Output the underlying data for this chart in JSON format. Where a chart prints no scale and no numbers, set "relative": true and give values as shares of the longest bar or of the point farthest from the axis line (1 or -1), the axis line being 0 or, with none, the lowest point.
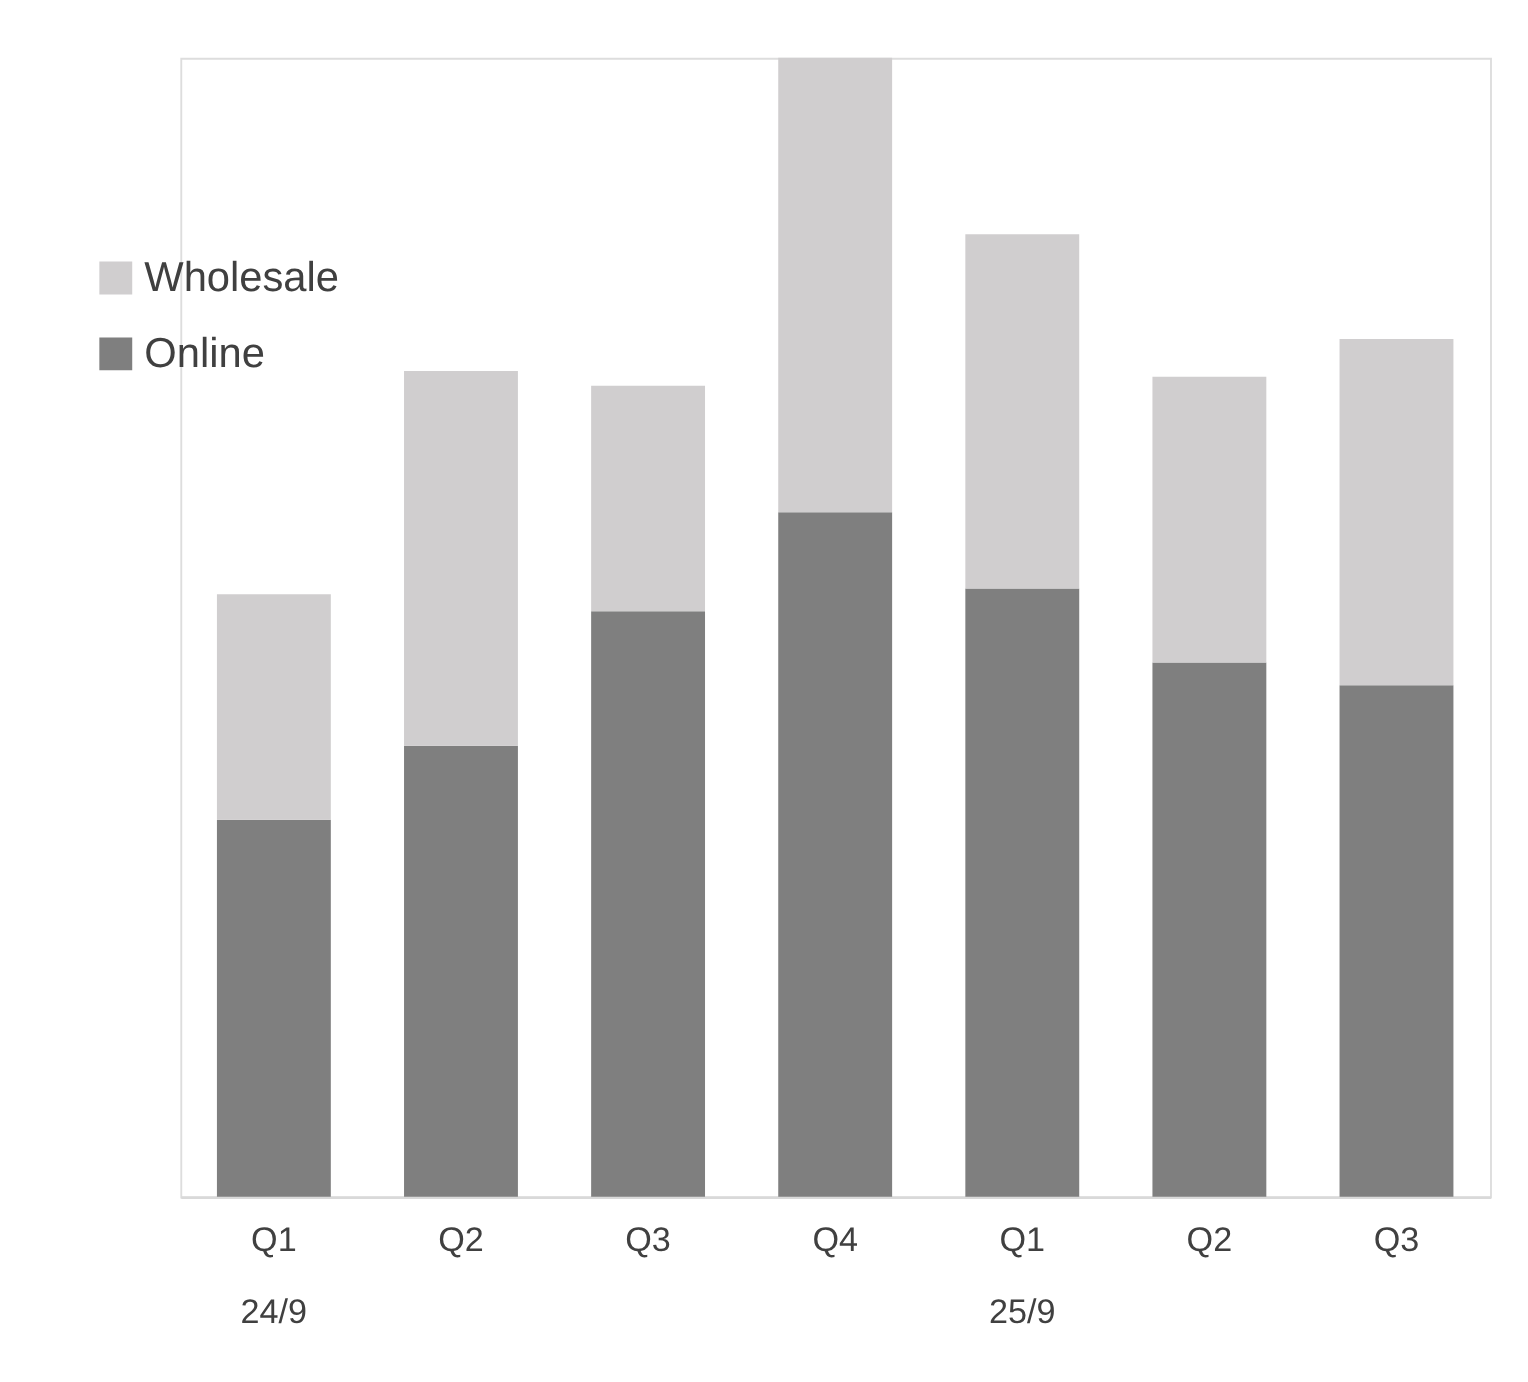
{
  "chart_data": {
    "type": "bar",
    "stacked": true,
    "relative": true,
    "categories": [
      "Q1\n24/9",
      "Q2",
      "Q3",
      "Q4",
      "Q1\n25/9",
      "Q2",
      "Q3"
    ],
    "series": [
      {
        "name": "Online",
        "color": "#7f7f7f",
        "values": [
          0.331,
          0.396,
          0.514,
          0.601,
          0.534,
          0.469,
          0.449
        ]
      },
      {
        "name": "Wholesale",
        "color": "#d0cecf",
        "values": [
          0.198,
          0.329,
          0.198,
          0.399,
          0.311,
          0.251,
          0.304
        ]
      }
    ],
    "legend": "top left",
    "grid": false
  }
}
